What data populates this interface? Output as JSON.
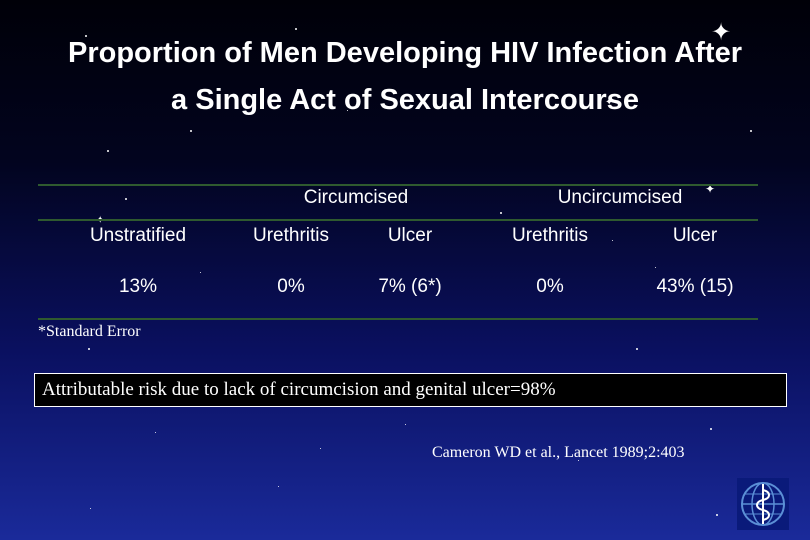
{
  "slide": {
    "title": "Proportion of Men Developing HIV Infection After a Single Act of Sexual Intercourse"
  },
  "table": {
    "group_headers": [
      "Circumcised",
      "Uncircumcised"
    ],
    "column_headers": [
      "Unstratified",
      "Urethritis",
      "Ulcer",
      "Urethritis",
      "Ulcer"
    ],
    "values": [
      "13%",
      "0%",
      "7% (6*)",
      "0%",
      "43% (15)"
    ]
  },
  "footnote": "*Standard Error",
  "attributable_risk": "Attributable risk due to lack of circumcision and genital ulcer=98%",
  "citation": "Cameron WD et al., Lancet 1989;2:403",
  "logo": {
    "icon": "who-emblem-icon",
    "color": "#5b8fd6"
  },
  "colors": {
    "text": "#ffffff",
    "rule": "#2f5a2f",
    "box_background": "#000000"
  }
}
